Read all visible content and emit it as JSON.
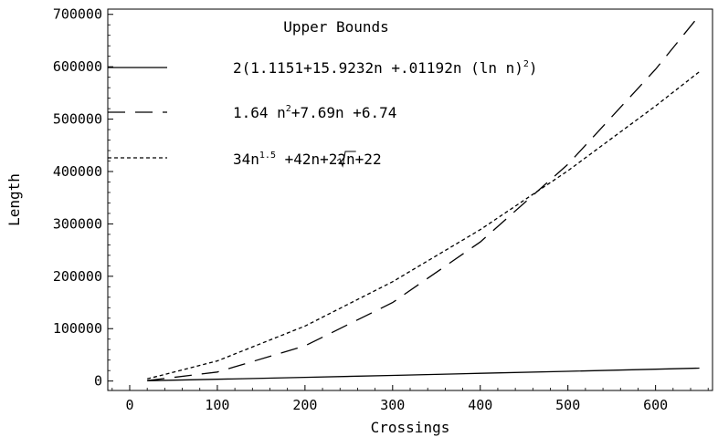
{
  "chart_data": {
    "type": "line",
    "title": "",
    "xlabel": "Crossings",
    "ylabel": "Length",
    "xlim": [
      -25,
      665
    ],
    "ylim": [
      -18000,
      710000
    ],
    "x_ticks": [
      0,
      100,
      200,
      300,
      400,
      500,
      600
    ],
    "y_ticks": [
      0,
      100000,
      200000,
      300000,
      400000,
      500000,
      600000,
      700000
    ],
    "x_tick_labels": [
      "0",
      "100",
      "200",
      "300",
      "400",
      "500",
      "600"
    ],
    "y_tick_labels": [
      "0",
      "100000",
      "200000",
      "300000",
      "400000",
      "500000",
      "600000",
      "700000"
    ],
    "grid": false,
    "legend_title": "Upper Bounds",
    "legend_position": "top-left",
    "series": [
      {
        "label": [
          "2(1.1151+15.9232n +.01192n (ln n)",
          "2",
          ")"
        ],
        "style": "solid",
        "x": [
          20,
          100,
          200,
          300,
          400,
          500,
          600,
          650
        ],
        "y": [
          700,
          3400,
          7100,
          10800,
          14700,
          18600,
          22600,
          24600
        ]
      },
      {
        "label": [
          "1.64 n",
          "2",
          "+7.69n +6.74"
        ],
        "style": "long-dash",
        "x": [
          20,
          100,
          200,
          300,
          400,
          500,
          600,
          650
        ],
        "y": [
          820,
          17170,
          67150,
          149900,
          265500,
          413800,
          595000,
          698000
        ]
      },
      {
        "label": [
          "34n",
          "1.5",
          " +42n+22",
          "n",
          "+22"
        ],
        "style": "short-dash",
        "x": [
          20,
          100,
          200,
          300,
          400,
          500,
          600,
          650
        ],
        "y": [
          4060,
          38440,
          104930,
          189600,
          289100,
          401300,
          525000,
          590600
        ]
      }
    ]
  }
}
